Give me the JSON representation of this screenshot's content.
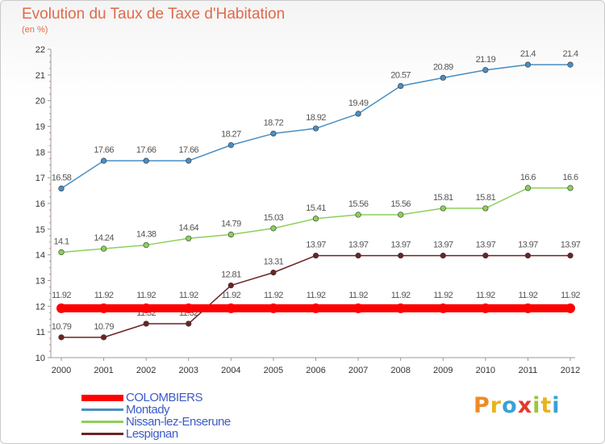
{
  "header": {
    "title": "Evolution du Taux de Taxe d'Habitation",
    "subtitle": "(en %)"
  },
  "brand": {
    "letters": [
      "P",
      "r",
      "o",
      "x",
      "i",
      "t",
      "i"
    ],
    "colors": [
      "#f08a24",
      "#e8b41a",
      "#3aa0d8",
      "#e23a2a",
      "#9bc73a",
      "#e8b41a",
      "#3aa0d8"
    ]
  },
  "colors": {
    "COLOMBIERS": "#ff0000",
    "Montady": "#4a8ec2",
    "Nissan-lez-Enserune": "#8cd05a",
    "Lespignan": "#6b2424",
    "axis": "#999999",
    "tick_text": "#333333",
    "label_text": "#555555",
    "legend_text": "#3b5bc8"
  },
  "chart_data": {
    "type": "line",
    "x": [
      "2000",
      "2001",
      "2002",
      "2003",
      "2004",
      "2005",
      "2006",
      "2007",
      "2008",
      "2009",
      "2010",
      "2011",
      "2012"
    ],
    "ylim": [
      10,
      22
    ],
    "yticks": [
      "10",
      "11",
      "12",
      "13",
      "14",
      "15",
      "16",
      "17",
      "18",
      "19",
      "20",
      "21",
      "22"
    ],
    "grid": false,
    "legend_position": "bottom-left",
    "series": [
      {
        "name": "COLOMBIERS",
        "values": [
          11.92,
          11.92,
          11.92,
          11.92,
          11.92,
          11.92,
          11.92,
          11.92,
          11.92,
          11.92,
          11.92,
          11.92,
          11.92
        ],
        "labels": [
          "11.92",
          "11.92",
          "11.92",
          "11.92",
          "11.92",
          "11.92",
          "11.92",
          "11.92",
          "11.92",
          "11.92",
          "11.92",
          "11.92",
          "11.92"
        ]
      },
      {
        "name": "Montady",
        "values": [
          16.58,
          17.66,
          17.66,
          17.66,
          18.27,
          18.72,
          18.92,
          19.49,
          20.57,
          20.89,
          21.19,
          21.4,
          21.4
        ],
        "labels": [
          "16.58",
          "17.66",
          "17.66",
          "17.66",
          "18.27",
          "18.72",
          "18.92",
          "19.49",
          "20.57",
          "20.89",
          "21.19",
          "21.4",
          "21.4"
        ]
      },
      {
        "name": "Nissan-lez-Enserune",
        "values": [
          14.1,
          14.24,
          14.38,
          14.64,
          14.79,
          15.03,
          15.41,
          15.56,
          15.56,
          15.81,
          15.81,
          16.6,
          16.6
        ],
        "labels": [
          "14.1",
          "14.24",
          "14.38",
          "14.64",
          "14.79",
          "15.03",
          "15.41",
          "15.56",
          "15.56",
          "15.81",
          "15.81",
          "16.6",
          "16.6"
        ]
      },
      {
        "name": "Lespignan",
        "values": [
          10.79,
          10.79,
          11.32,
          11.32,
          12.81,
          13.31,
          13.97,
          13.97,
          13.97,
          13.97,
          13.97,
          13.97,
          13.97
        ],
        "labels": [
          "10.79",
          "10.79",
          "11.32",
          "11.32",
          "12.81",
          "13.31",
          "13.97",
          "13.97",
          "13.97",
          "13.97",
          "13.97",
          "13.97",
          "13.97"
        ]
      }
    ]
  }
}
